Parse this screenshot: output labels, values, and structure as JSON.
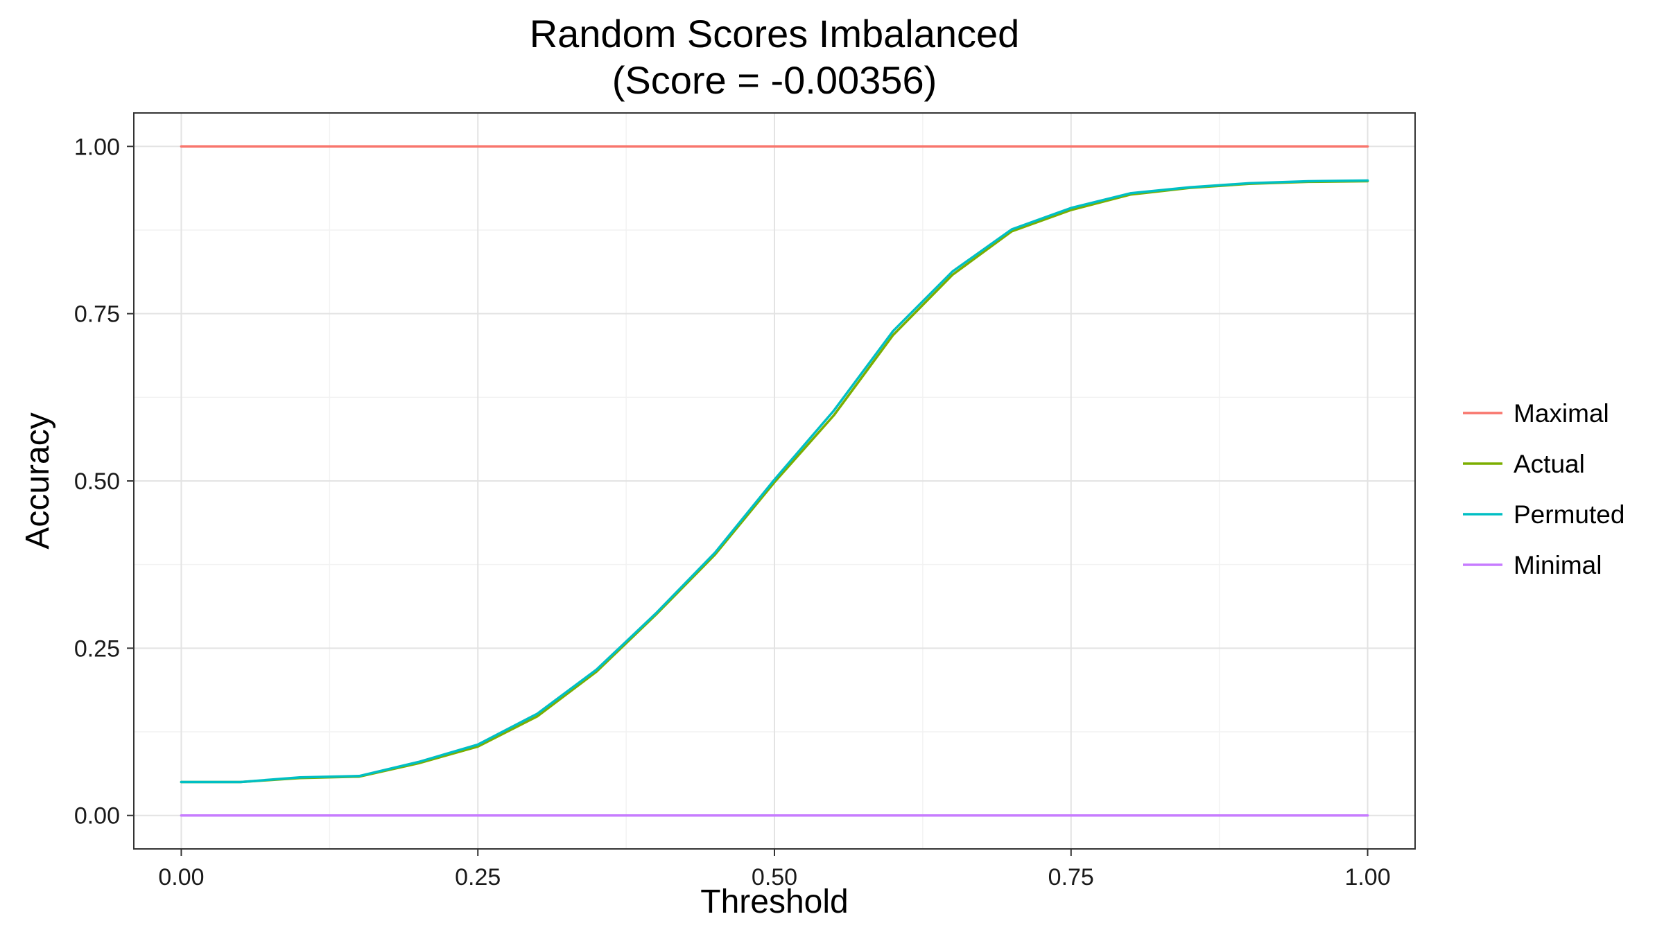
{
  "chart_data": {
    "type": "line",
    "title": "Random Scores Imbalanced",
    "subtitle": "(Score = -0.00356)",
    "xlabel": "Threshold",
    "ylabel": "Accuracy",
    "xlim": [
      -0.04,
      1.04
    ],
    "ylim": [
      -0.05,
      1.05
    ],
    "x_ticks": [
      0,
      0.25,
      0.5,
      0.75,
      1
    ],
    "x_tick_labels": [
      "0.00",
      "0.25",
      "0.50",
      "0.75",
      "1.00"
    ],
    "y_ticks": [
      0,
      0.25,
      0.5,
      0.75,
      1
    ],
    "y_tick_labels": [
      "0.00",
      "0.25",
      "0.50",
      "0.75",
      "1.00"
    ],
    "grid": true,
    "legend_position": "right",
    "series": [
      {
        "name": "Maximal",
        "color": "#F8766D",
        "x": [
          0,
          1
        ],
        "y": [
          1,
          1
        ]
      },
      {
        "name": "Actual",
        "color": "#7CAE00",
        "x": [
          0,
          0.05,
          0.1,
          0.15,
          0.2,
          0.25,
          0.3,
          0.35,
          0.4,
          0.45,
          0.5,
          0.55,
          0.6,
          0.65,
          0.7,
          0.75,
          0.8,
          0.85,
          0.9,
          0.95,
          1
        ],
        "y": [
          0.05,
          0.05,
          0.056,
          0.058,
          0.078,
          0.103,
          0.148,
          0.215,
          0.3,
          0.39,
          0.498,
          0.598,
          0.718,
          0.808,
          0.873,
          0.905,
          0.928,
          0.938,
          0.944,
          0.947,
          0.948
        ]
      },
      {
        "name": "Permuted",
        "color": "#00BFC4",
        "x": [
          0,
          0.05,
          0.1,
          0.15,
          0.2,
          0.25,
          0.3,
          0.35,
          0.4,
          0.45,
          0.5,
          0.55,
          0.6,
          0.65,
          0.7,
          0.75,
          0.8,
          0.85,
          0.9,
          0.95,
          1
        ],
        "y": [
          0.05,
          0.05,
          0.057,
          0.059,
          0.08,
          0.106,
          0.152,
          0.218,
          0.302,
          0.393,
          0.502,
          0.605,
          0.724,
          0.813,
          0.876,
          0.908,
          0.93,
          0.939,
          0.945,
          0.948,
          0.949
        ]
      },
      {
        "name": "Minimal",
        "color": "#C77CFF",
        "x": [
          0,
          1
        ],
        "y": [
          0,
          0
        ]
      }
    ]
  }
}
